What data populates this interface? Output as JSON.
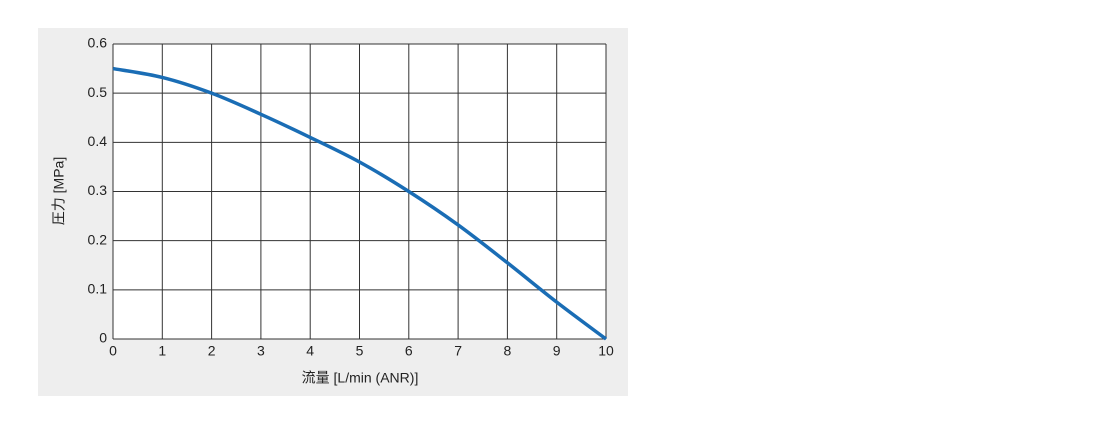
{
  "chart_data": {
    "type": "line",
    "x_label": "流量 [L/min (ANR)]",
    "y_label": "圧力 [MPa]",
    "x": [
      0,
      1,
      2,
      3,
      4,
      5,
      6,
      7,
      8,
      9,
      10
    ],
    "series": [
      {
        "color": "#1a6db5",
        "values": [
          0.55,
          0.532,
          0.5,
          0.457,
          0.41,
          0.36,
          0.3,
          0.232,
          0.155,
          0.075,
          0
        ]
      }
    ],
    "xlim": [
      0,
      10
    ],
    "xticks": [
      0,
      1,
      2,
      3,
      4,
      5,
      6,
      7,
      8,
      9,
      10
    ],
    "ylim": [
      0,
      0.6
    ],
    "yticks": [
      0,
      0.1,
      0.2,
      0.3,
      0.4,
      0.5,
      0.6
    ],
    "grid": true
  }
}
